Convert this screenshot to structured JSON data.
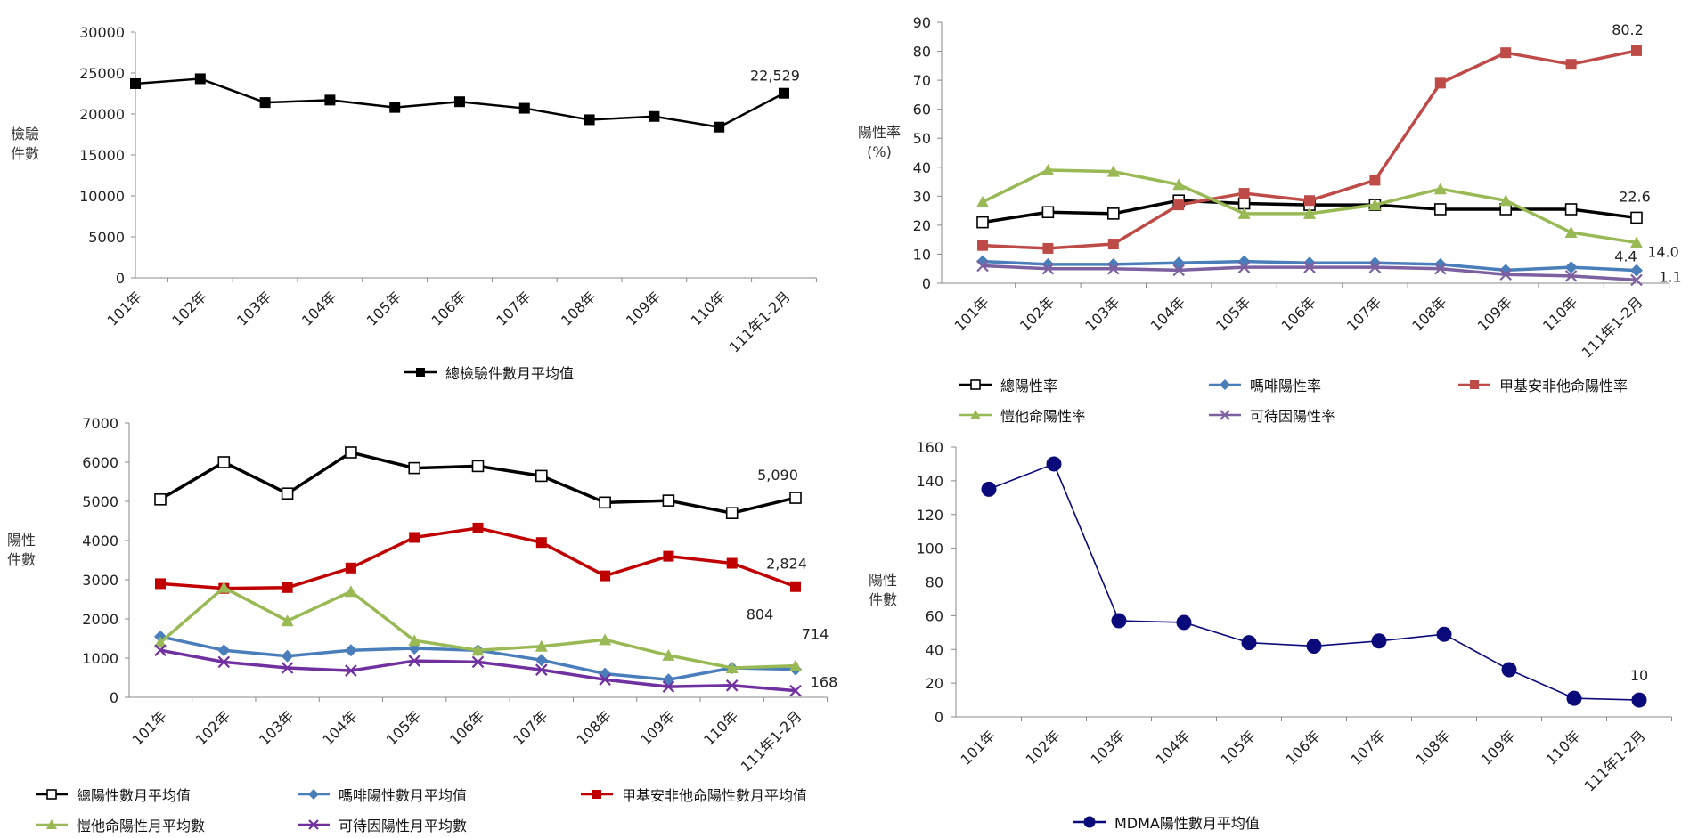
{
  "chart_data": [
    {
      "type": "line",
      "categories": [
        "101年",
        "102年",
        "103年",
        "104年",
        "105年",
        "106年",
        "107年",
        "108年",
        "109年",
        "110年",
        "111年1-2月"
      ],
      "ylabel": "檢驗\n件數",
      "ylim": [
        0,
        30000
      ],
      "yticks": [
        "0",
        "5000",
        "10000",
        "15000",
        "20000",
        "25000",
        "30000"
      ],
      "series": [
        {
          "name": "總檢驗件數月平均值",
          "color": "#000000",
          "marker": "square-filled",
          "values": [
            23700,
            24300,
            21400,
            21700,
            20800,
            21500,
            20700,
            19300,
            19700,
            18400,
            22529
          ],
          "end_label": "22,529"
        }
      ]
    },
    {
      "type": "line",
      "categories": [
        "101年",
        "102年",
        "103年",
        "104年",
        "105年",
        "106年",
        "107年",
        "108年",
        "109年",
        "110年",
        "111年1-2月"
      ],
      "ylabel": "陽性率\n(%)",
      "ylim": [
        0,
        90
      ],
      "yticks": [
        "0",
        "10",
        "20",
        "30",
        "40",
        "50",
        "60",
        "70",
        "80",
        "90"
      ],
      "series": [
        {
          "name": "總陽性率",
          "color": "#000000",
          "marker": "square-open",
          "values": [
            21,
            24.5,
            24,
            28.5,
            27.5,
            27,
            27,
            25.5,
            25.5,
            25.5,
            22.6
          ],
          "end_label": "22.6"
        },
        {
          "name": "嗎啡陽性率",
          "color": "#4a7ebb",
          "marker": "diamond",
          "values": [
            7.5,
            6.5,
            6.5,
            7,
            7.5,
            7,
            7,
            6.5,
            4.5,
            5.5,
            4.4
          ],
          "end_label": "4.4"
        },
        {
          "name": "甲基安非他命陽性率",
          "color": "#be4b48",
          "marker": "square-filled",
          "values": [
            13,
            12,
            13.5,
            27,
            31,
            28.5,
            35.5,
            69,
            79.5,
            75.5,
            80.2
          ],
          "end_label": "80.2"
        },
        {
          "name": "愷他命陽性率",
          "color": "#98b954",
          "marker": "triangle",
          "values": [
            28,
            39,
            38.5,
            34,
            24,
            24,
            27,
            32.5,
            28.5,
            17.5,
            14.0
          ],
          "end_label": "14.0"
        },
        {
          "name": "可待因陽性率",
          "color": "#7d60a0",
          "marker": "x",
          "values": [
            6,
            5,
            5,
            4.5,
            5.5,
            5.5,
            5.5,
            5,
            3,
            2.5,
            1.1
          ],
          "end_label": "1.1"
        }
      ]
    },
    {
      "type": "line",
      "categories": [
        "101年",
        "102年",
        "103年",
        "104年",
        "105年",
        "106年",
        "107年",
        "108年",
        "109年",
        "110年",
        "111年1-2月"
      ],
      "ylabel": "陽性\n件數",
      "ylim": [
        0,
        7000
      ],
      "yticks": [
        "0",
        "1000",
        "2000",
        "3000",
        "4000",
        "5000",
        "6000",
        "7000"
      ],
      "series": [
        {
          "name": "總陽性數月平均值",
          "color": "#000000",
          "marker": "square-open",
          "values": [
            5050,
            6000,
            5200,
            6250,
            5850,
            5900,
            5650,
            4970,
            5020,
            4700,
            5090
          ],
          "end_label": "5,090"
        },
        {
          "name": "嗎啡陽性數月平均值",
          "color": "#4a7ebb",
          "marker": "diamond",
          "values": [
            1550,
            1200,
            1050,
            1200,
            1250,
            1200,
            950,
            600,
            450,
            750,
            714
          ],
          "end_label": "714"
        },
        {
          "name": "甲基安非他命陽性數月平均值",
          "color": "#c00000",
          "marker": "square-filled",
          "values": [
            2900,
            2780,
            2800,
            3300,
            4080,
            4320,
            3950,
            3100,
            3600,
            3420,
            2824
          ],
          "end_label": "2,824"
        },
        {
          "name": "愷他命陽性月平均數",
          "color": "#98b954",
          "marker": "triangle",
          "values": [
            1400,
            2800,
            1950,
            2700,
            1450,
            1200,
            1300,
            1470,
            1070,
            750,
            804
          ],
          "end_label": "804"
        },
        {
          "name": "可待因陽性月平均數",
          "color": "#7030a0",
          "marker": "x",
          "values": [
            1200,
            900,
            750,
            680,
            930,
            900,
            700,
            450,
            270,
            300,
            168
          ],
          "end_label": "168"
        }
      ]
    },
    {
      "type": "line",
      "categories": [
        "101年",
        "102年",
        "103年",
        "104年",
        "105年",
        "106年",
        "107年",
        "108年",
        "109年",
        "110年",
        "111年1-2月"
      ],
      "ylabel": "陽性\n件數",
      "ylim": [
        0,
        160
      ],
      "yticks": [
        "0",
        "20",
        "40",
        "60",
        "80",
        "100",
        "120",
        "140",
        "160"
      ],
      "series": [
        {
          "name": "MDMA陽性數月平均值",
          "color": "#0a0a7a",
          "marker": "circle",
          "values": [
            135,
            150,
            57,
            56,
            44,
            42,
            45,
            49,
            28,
            11,
            10
          ],
          "end_label": "10"
        }
      ]
    }
  ]
}
